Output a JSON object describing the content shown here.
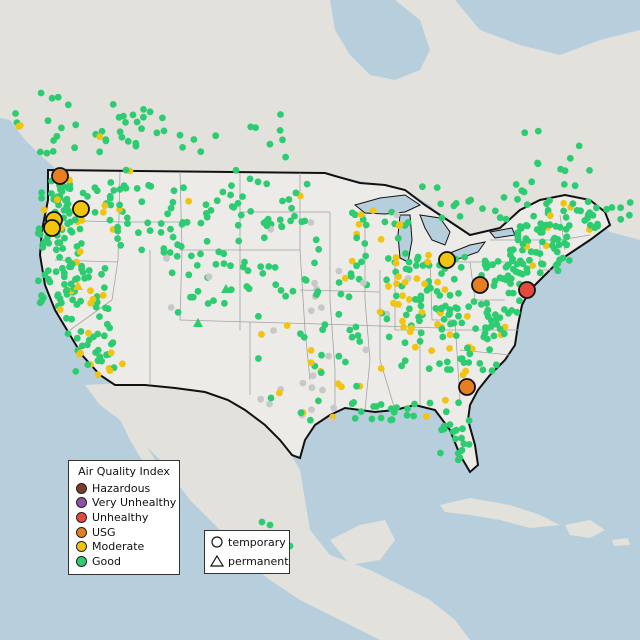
{
  "legend": {
    "title": "Air Quality Index",
    "categories": [
      {
        "label": "Hazardous",
        "color": "#7e3b2a"
      },
      {
        "label": "Very Unhealthy",
        "color": "#8f4fa3"
      },
      {
        "label": "Unhealthy",
        "color": "#e5483d"
      },
      {
        "label": "USG",
        "color": "#e67e22"
      },
      {
        "label": "Moderate",
        "color": "#f1c40f"
      },
      {
        "label": "Good",
        "color": "#2ecc71"
      }
    ]
  },
  "monitor_type_legend": {
    "temporary": "temporary",
    "permanent": "permanent"
  },
  "colors": {
    "water": "#b7cfdc",
    "land": "#e7e4df",
    "us_land": "#ecebe8",
    "border": "#111111",
    "state_lines": "#9c9c9c",
    "no_data": "#c8c8c8"
  }
}
